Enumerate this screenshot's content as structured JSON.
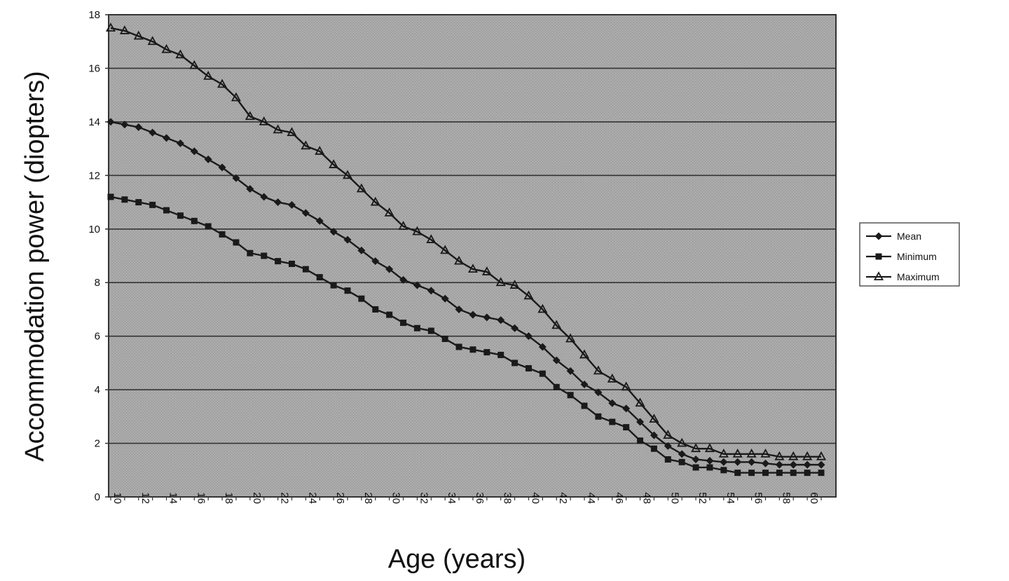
{
  "chart_data": {
    "type": "line",
    "title": "",
    "xlabel": "Age (years)",
    "ylabel": "Accommodation power (diopters)",
    "xlim": [
      10,
      61
    ],
    "ylim": [
      0,
      18
    ],
    "x": [
      10,
      11,
      12,
      13,
      14,
      15,
      16,
      17,
      18,
      19,
      20,
      21,
      22,
      23,
      24,
      25,
      26,
      27,
      28,
      29,
      30,
      31,
      32,
      33,
      34,
      35,
      36,
      37,
      38,
      39,
      40,
      41,
      42,
      43,
      44,
      45,
      46,
      47,
      48,
      49,
      50,
      51,
      52,
      53,
      54,
      55,
      56,
      57,
      58,
      59,
      60,
      61
    ],
    "x_tick_labels": [
      "10",
      "12",
      "14",
      "16",
      "18",
      "20",
      "22",
      "24",
      "26",
      "28",
      "30",
      "32",
      "34",
      "36",
      "38",
      "40",
      "42",
      "44",
      "46",
      "48",
      "50",
      "52",
      "54",
      "56",
      "58",
      "60"
    ],
    "y_tick_labels": [
      "0",
      "2",
      "4",
      "6",
      "8",
      "10",
      "12",
      "14",
      "16",
      "18"
    ],
    "grid": true,
    "legend_position": "right",
    "series": [
      {
        "name": "Mean",
        "marker": "diamond",
        "values": [
          14.0,
          13.9,
          13.8,
          13.6,
          13.4,
          13.2,
          12.9,
          12.6,
          12.3,
          11.9,
          11.5,
          11.2,
          11.0,
          10.9,
          10.6,
          10.3,
          9.9,
          9.6,
          9.2,
          8.8,
          8.5,
          8.1,
          7.9,
          7.7,
          7.4,
          7.0,
          6.8,
          6.7,
          6.6,
          6.3,
          6.0,
          5.6,
          5.1,
          4.7,
          4.2,
          3.9,
          3.5,
          3.3,
          2.8,
          2.3,
          1.9,
          1.6,
          1.4,
          1.35,
          1.3,
          1.3,
          1.3,
          1.25,
          1.2,
          1.2,
          1.2,
          1.2
        ]
      },
      {
        "name": "Minimum",
        "marker": "square",
        "values": [
          11.2,
          11.1,
          11.0,
          10.9,
          10.7,
          10.5,
          10.3,
          10.1,
          9.8,
          9.5,
          9.1,
          9.0,
          8.8,
          8.7,
          8.5,
          8.2,
          7.9,
          7.7,
          7.4,
          7.0,
          6.8,
          6.5,
          6.3,
          6.2,
          5.9,
          5.6,
          5.5,
          5.4,
          5.3,
          5.0,
          4.8,
          4.6,
          4.1,
          3.8,
          3.4,
          3.0,
          2.8,
          2.6,
          2.1,
          1.8,
          1.4,
          1.3,
          1.1,
          1.1,
          1.0,
          0.9,
          0.9,
          0.9,
          0.9,
          0.9,
          0.9,
          0.9
        ]
      },
      {
        "name": "Maximum",
        "marker": "triangle",
        "values": [
          17.5,
          17.4,
          17.2,
          17.0,
          16.7,
          16.5,
          16.1,
          15.7,
          15.4,
          14.9,
          14.2,
          14.0,
          13.7,
          13.6,
          13.1,
          12.9,
          12.4,
          12.0,
          11.5,
          11.0,
          10.6,
          10.1,
          9.9,
          9.6,
          9.2,
          8.8,
          8.5,
          8.4,
          8.0,
          7.9,
          7.5,
          7.0,
          6.4,
          5.9,
          5.3,
          4.7,
          4.4,
          4.1,
          3.5,
          2.9,
          2.3,
          2.0,
          1.8,
          1.8,
          1.6,
          1.6,
          1.6,
          1.6,
          1.5,
          1.5,
          1.5,
          1.5
        ]
      }
    ]
  }
}
